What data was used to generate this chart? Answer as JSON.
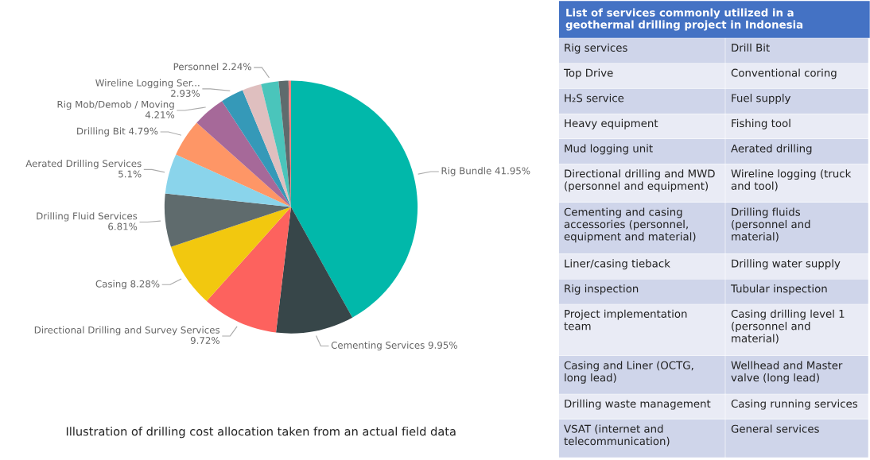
{
  "chart_data": [
    {
      "type": "pie",
      "categories": [
        "Rig Bundle",
        "Cementing Services",
        "Directional Drilling and Survey Services",
        "Casing",
        "Drilling Fluid Services",
        "Aerated Drilling Services",
        "Drilling Bit",
        "Rig Mob/Demob / Moving",
        "Wireline Logging Ser...",
        null,
        "Personnel",
        null,
        null
      ],
      "values": [
        41.95,
        9.95,
        9.72,
        8.28,
        6.81,
        5.1,
        4.79,
        4.21,
        2.93,
        2.45,
        2.24,
        1.25,
        0.32
      ],
      "value_labels": [
        "41.95%",
        "9.95%",
        "9.72%",
        "8.28%",
        "6.81%",
        "5.1%",
        "4.79%",
        "4.21%",
        "2.93%",
        null,
        "2.24%",
        null,
        null
      ],
      "colors": [
        "#01b8aa",
        "#374649",
        "#fd625e",
        "#f2c80f",
        "#5f6b6d",
        "#8ad4eb",
        "#fe9666",
        "#a66999",
        "#3599b8",
        "#dfbfbf",
        "#4ac5bb",
        "#5f6b6d",
        "#fb8281"
      ],
      "annotations": [
        "Illustration of drilling cost allocation taken from an actual field data"
      ]
    },
    {
      "type": "other",
      "title": "List of services commonly utilized in a geothermal drilling project in Indonesia",
      "annotations": [
        "Rig services",
        "Drill Bit",
        "Top Drive",
        "Conventional coring",
        "H₂S service",
        "Fuel supply",
        "Heavy equipment",
        "Fishing tool",
        "Mud logging unit",
        "Aerated drilling",
        "Directional drilling and MWD (personnel and equipment)",
        "Wireline logging (truck and tool)",
        "Cementing and casing accessories (personnel, equipment and material)",
        "Drilling fluids (personnel and material)",
        "Liner/casing tieback",
        "Drilling water supply",
        "Rig inspection",
        "Tubular inspection",
        "Project implementation team",
        "Casing drilling level 1 (personnel and material)",
        "Casing and Liner (OCTG, long lead)",
        "Wellhead and Master valve (long lead)",
        "Drilling waste management",
        "Casing running services",
        "VSAT (internet and telecommunication)",
        "General services"
      ]
    }
  ]
}
